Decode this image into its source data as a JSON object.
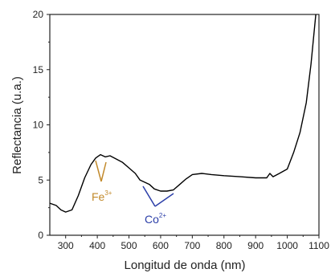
{
  "chart_data": {
    "type": "line",
    "xlabel": "Longitud de onda (nm)",
    "ylabel": "Reflectancia (u.a.)",
    "xlim": [
      250,
      1100
    ],
    "ylim": [
      0,
      20
    ],
    "x_ticks": [
      300,
      400,
      500,
      600,
      700,
      800,
      900,
      1000,
      1100
    ],
    "x_tick_labels": [
      "300",
      "400",
      "500",
      "600",
      "700",
      "800",
      "900",
      "1000",
      "1100"
    ],
    "y_ticks": [
      0,
      5,
      10,
      15,
      20
    ],
    "y_tick_labels": [
      "0",
      "5",
      "10",
      "15",
      "20"
    ],
    "grid": false,
    "series": [
      {
        "color": "#000000",
        "points": [
          [
            250,
            2.9
          ],
          [
            270,
            2.7
          ],
          [
            285,
            2.3
          ],
          [
            300,
            2.1
          ],
          [
            320,
            2.3
          ],
          [
            340,
            3.6
          ],
          [
            360,
            5.2
          ],
          [
            380,
            6.4
          ],
          [
            395,
            7.0
          ],
          [
            410,
            7.3
          ],
          [
            425,
            7.1
          ],
          [
            440,
            7.2
          ],
          [
            460,
            6.9
          ],
          [
            480,
            6.6
          ],
          [
            500,
            6.1
          ],
          [
            520,
            5.6
          ],
          [
            535,
            5.0
          ],
          [
            550,
            4.8
          ],
          [
            565,
            4.6
          ],
          [
            580,
            4.2
          ],
          [
            600,
            4.0
          ],
          [
            620,
            4.0
          ],
          [
            640,
            4.1
          ],
          [
            660,
            4.6
          ],
          [
            680,
            5.1
          ],
          [
            700,
            5.5
          ],
          [
            730,
            5.6
          ],
          [
            760,
            5.5
          ],
          [
            800,
            5.4
          ],
          [
            850,
            5.3
          ],
          [
            900,
            5.2
          ],
          [
            935,
            5.2
          ],
          [
            945,
            5.6
          ],
          [
            955,
            5.3
          ],
          [
            975,
            5.6
          ],
          [
            1000,
            6.0
          ],
          [
            1020,
            7.5
          ],
          [
            1040,
            9.3
          ],
          [
            1060,
            12.0
          ],
          [
            1075,
            15.5
          ],
          [
            1085,
            18.5
          ],
          [
            1090,
            20.0
          ]
        ]
      }
    ],
    "annotations": [
      {
        "text": "Fe",
        "sup": "3+",
        "color": "#c28a2c"
      },
      {
        "text": "Co",
        "sup": "2+",
        "color": "#2b3ea8"
      }
    ]
  }
}
